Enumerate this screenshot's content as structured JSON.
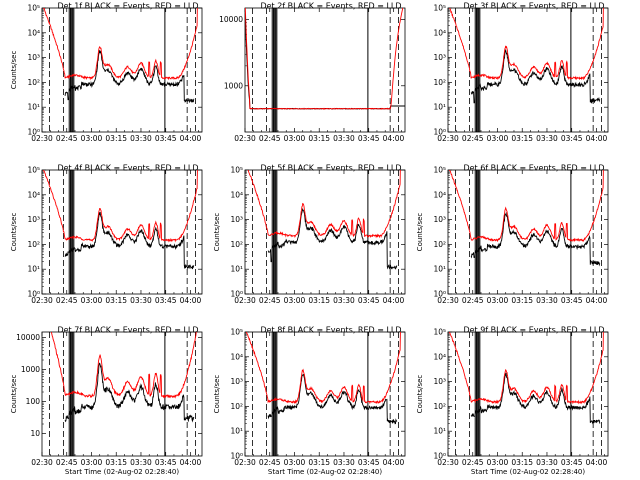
{
  "figure": {
    "background": "#ffffff",
    "colors": {
      "events": "#000000",
      "lld": "#ff0000",
      "axes": "#000000"
    },
    "x_tick_labels": [
      "02:30",
      "02:45",
      "03:00",
      "03:15",
      "03:30",
      "03:45",
      "04:00"
    ],
    "x_tick_minutes": [
      0,
      15,
      30,
      45,
      60,
      75,
      90
    ],
    "xlim_minutes": [
      0,
      97
    ],
    "xlabel": "Start Time (02-Aug-02 02:28:40)",
    "ylabel": "Counts/sec",
    "y_tick_labels_log": [
      "10⁰",
      "10¹",
      "10²",
      "10³",
      "10⁴",
      "10⁵"
    ],
    "y_tick_labels_plain": [
      "1",
      "10",
      "100",
      "1000",
      "10000"
    ],
    "vlines_solid_minutes": [
      16.5,
      17.3,
      18.0,
      18.6,
      19.3,
      74.5
    ],
    "vlines_dashed_minutes": [
      4.5,
      13,
      88,
      93
    ]
  },
  "chart_data": [
    {
      "type": "line",
      "title": "Det 1f BLACK = Events, RED = LLD",
      "ylabel": "Counts/sec",
      "xlabel": "",
      "y_scale": "log",
      "ylim": [
        1,
        100000
      ],
      "y_ticks": [
        1,
        10,
        100,
        1000,
        10000,
        100000
      ],
      "y_tick_style": "log",
      "series": [
        {
          "key": "events",
          "base": 150,
          "scale": 0.55,
          "drop": 20,
          "end": 15
        },
        {
          "key": "lld",
          "base": 150,
          "scale": 1,
          "high": 200000
        }
      ]
    },
    {
      "type": "line",
      "title": "Det 2f BLACK = Events, RED = LLD",
      "ylabel": "",
      "xlabel": "",
      "y_scale": "log",
      "ylim": [
        200,
        15000
      ],
      "y_ticks": [
        1000,
        10000
      ],
      "y_tick_style": "plain",
      "series": [
        {
          "key": "events",
          "flat": 450
        },
        {
          "key": "lld",
          "flat": 450,
          "high": 20000
        }
      ]
    },
    {
      "type": "line",
      "title": "Det 3f BLACK = Events, RED = LLD",
      "ylabel": "",
      "xlabel": "",
      "y_scale": "log",
      "ylim": [
        1,
        100000
      ],
      "y_ticks": [
        1,
        10,
        100,
        1000,
        10000,
        100000
      ],
      "y_tick_style": "log",
      "series": [
        {
          "key": "events",
          "base": 150,
          "scale": 0.55,
          "drop": 15,
          "end": 15
        },
        {
          "key": "lld",
          "base": 150,
          "scale": 1,
          "high": 150000
        }
      ]
    },
    {
      "type": "line",
      "title": "Det 4f BLACK = Events, RED = LLD",
      "ylabel": "Counts/sec",
      "xlabel": "",
      "y_scale": "log",
      "ylim": [
        1,
        100000
      ],
      "y_ticks": [
        1,
        10,
        100,
        1000,
        10000,
        100000
      ],
      "y_tick_style": "log",
      "series": [
        {
          "key": "events",
          "base": 150,
          "scale": 0.55,
          "drop": 50,
          "end": 10
        },
        {
          "key": "lld",
          "base": 150,
          "scale": 1,
          "high": 100000
        }
      ]
    },
    {
      "type": "line",
      "title": "Det 5f BLACK = Events, RED = LLD",
      "ylabel": "Counts/sec",
      "xlabel": "",
      "y_scale": "log",
      "ylim": [
        1,
        100000
      ],
      "y_ticks": [
        1,
        10,
        100,
        1000,
        10000,
        100000
      ],
      "y_tick_style": "log",
      "series": [
        {
          "key": "events",
          "base": 220,
          "scale": 0.55,
          "drop": 20,
          "end": 10
        },
        {
          "key": "lld",
          "base": 220,
          "scale": 1,
          "high": 200000
        }
      ]
    },
    {
      "type": "line",
      "title": "Det 6f BLACK = Events, RED = LLD",
      "ylabel": "Counts/sec",
      "xlabel": "",
      "y_scale": "log",
      "ylim": [
        1,
        100000
      ],
      "y_ticks": [
        1,
        10,
        100,
        1000,
        10000,
        100000
      ],
      "y_tick_style": "log",
      "series": [
        {
          "key": "events",
          "base": 150,
          "scale": 0.55,
          "drop": 30,
          "end": 15
        },
        {
          "key": "lld",
          "base": 150,
          "scale": 1,
          "high": 150000
        }
      ]
    },
    {
      "type": "line",
      "title": "Det 7f BLACK = Events, RED = LLD",
      "ylabel": "Counts/sec",
      "xlabel": "Start Time (02-Aug-02 02:28:40)",
      "y_scale": "log",
      "ylim": [
        2,
        15000
      ],
      "y_ticks": [
        10,
        100,
        1000,
        10000
      ],
      "y_tick_style": "plain",
      "series": [
        {
          "key": "events",
          "base": 150,
          "scale": 0.45,
          "drop": 30,
          "end": 25
        },
        {
          "key": "lld",
          "base": 150,
          "scale": 1,
          "high": 15000
        }
      ]
    },
    {
      "type": "line",
      "title": "Det 8f BLACK = Events, RED = LLD",
      "ylabel": "Counts/sec",
      "xlabel": "Start Time (02-Aug-02 02:28:40)",
      "y_scale": "log",
      "ylim": [
        1,
        100000
      ],
      "y_ticks": [
        1,
        10,
        100,
        1000,
        10000,
        100000
      ],
      "y_tick_style": "log",
      "series": [
        {
          "key": "events",
          "base": 150,
          "scale": 0.6,
          "drop": 40,
          "end": 20
        },
        {
          "key": "lld",
          "base": 150,
          "scale": 1,
          "high": 100000
        }
      ]
    },
    {
      "type": "line",
      "title": "Det 9f BLACK = Events, RED = LLD",
      "ylabel": "Counts/sec",
      "xlabel": "Start Time (02-Aug-02 02:28:40)",
      "y_scale": "log",
      "ylim": [
        1,
        100000
      ],
      "y_ticks": [
        1,
        10,
        100,
        1000,
        10000,
        100000
      ],
      "y_tick_style": "log",
      "series": [
        {
          "key": "events",
          "base": 150,
          "scale": 0.6,
          "drop": 40,
          "end": 20
        },
        {
          "key": "lld",
          "base": 150,
          "scale": 1,
          "high": 150000
        }
      ]
    }
  ]
}
